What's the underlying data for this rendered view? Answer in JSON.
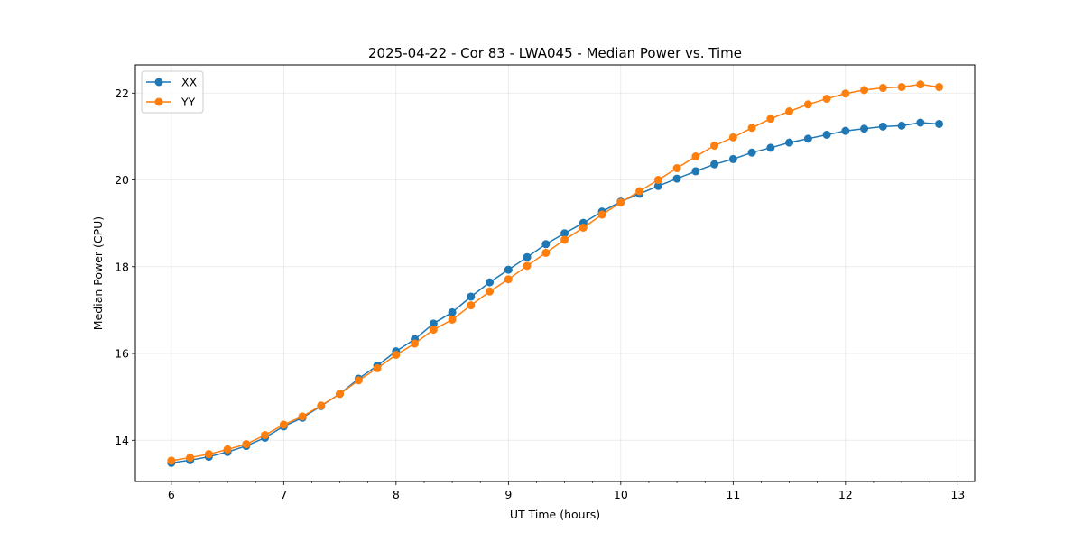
{
  "chart_data": {
    "type": "line",
    "title": "2025-04-22 - Cor 83 - LWA045 - Median Power vs. Time",
    "xlabel": "UT Time (hours)",
    "ylabel": "Median Power (CPU)",
    "xlim": [
      5.68,
      13.15
    ],
    "ylim": [
      13.05,
      22.65
    ],
    "xticks": [
      6,
      7,
      8,
      9,
      10,
      11,
      12,
      13
    ],
    "xtick_labels": [
      "6",
      "7",
      "8",
      "9",
      "10",
      "11",
      "12",
      "13"
    ],
    "yticks": [
      14,
      16,
      18,
      20,
      22
    ],
    "ytick_labels": [
      "14",
      "16",
      "18",
      "20",
      "22"
    ],
    "grid": true,
    "legend_position": "top-left",
    "x": [
      6.0,
      6.1667,
      6.3333,
      6.5,
      6.6667,
      6.8333,
      7.0,
      7.1667,
      7.3333,
      7.5,
      7.6667,
      7.8333,
      8.0,
      8.1667,
      8.3333,
      8.5,
      8.6667,
      8.8333,
      9.0,
      9.1667,
      9.3333,
      9.5,
      9.6667,
      9.8333,
      10.0,
      10.1667,
      10.3333,
      10.5,
      10.6667,
      10.8333,
      11.0,
      11.1667,
      11.3333,
      11.5,
      11.6667,
      11.8333,
      12.0,
      12.1667,
      12.3333,
      12.5,
      12.6667,
      12.8333
    ],
    "series": [
      {
        "name": "XX",
        "color": "#1f77b4",
        "values": [
          13.48,
          13.54,
          13.62,
          13.73,
          13.87,
          14.06,
          14.32,
          14.52,
          14.79,
          15.07,
          15.42,
          15.72,
          16.05,
          16.33,
          16.69,
          16.95,
          17.31,
          17.64,
          17.93,
          18.22,
          18.52,
          18.77,
          19.01,
          19.27,
          19.5,
          19.68,
          19.86,
          20.03,
          20.2,
          20.36,
          20.48,
          20.63,
          20.74,
          20.86,
          20.95,
          21.04,
          21.13,
          21.18,
          21.23,
          21.25,
          21.32,
          21.29
        ]
      },
      {
        "name": "YY",
        "color": "#ff7f0e",
        "values": [
          13.53,
          13.6,
          13.68,
          13.79,
          13.91,
          14.12,
          14.36,
          14.55,
          14.8,
          15.07,
          15.38,
          15.66,
          15.97,
          16.23,
          16.55,
          16.78,
          17.11,
          17.43,
          17.71,
          18.02,
          18.32,
          18.62,
          18.9,
          19.2,
          19.48,
          19.74,
          20.0,
          20.27,
          20.54,
          20.79,
          20.98,
          21.2,
          21.41,
          21.58,
          21.74,
          21.87,
          21.99,
          22.07,
          22.12,
          22.14,
          22.2,
          22.14
        ]
      }
    ]
  }
}
